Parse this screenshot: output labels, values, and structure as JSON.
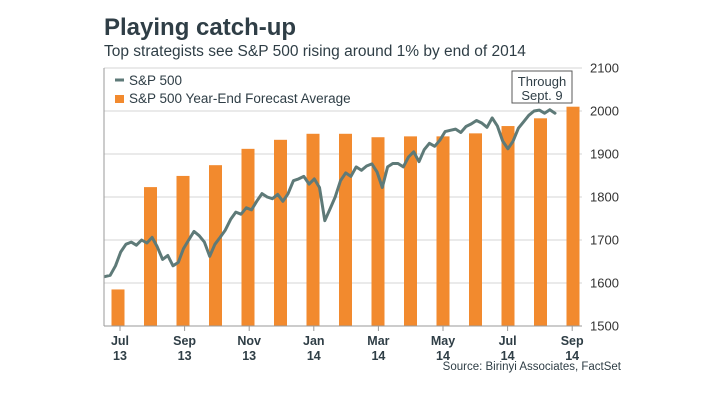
{
  "header": {
    "title": "Playing catch-up",
    "subtitle": "Top strategists see S&P 500 rising around 1% by end of 2014"
  },
  "source": "Source: Birinyi Associates, FactSet",
  "callout": {
    "line1": "Through",
    "line2": "Sept. 9"
  },
  "colors": {
    "line": "#5e7a78",
    "bar": "#f28a2e",
    "grid": "#d6d6d6",
    "axis": "#9a9a9a"
  },
  "chart_data": {
    "type": "bar+line",
    "ylim": [
      1500,
      2100
    ],
    "yticks": [
      1500,
      1600,
      1700,
      1800,
      1900,
      2000,
      2100
    ],
    "y_axis_side": "right",
    "grid": true,
    "legend_placement": "top-left",
    "xticks": [
      {
        "line1": "Jul",
        "line2": "13"
      },
      {
        "line1": "Sep",
        "line2": "13"
      },
      {
        "line1": "Nov",
        "line2": "13"
      },
      {
        "line1": "Jan",
        "line2": "14"
      },
      {
        "line1": "Mar",
        "line2": "14"
      },
      {
        "line1": "May",
        "line2": "14"
      },
      {
        "line1": "Jul",
        "line2": "14"
      },
      {
        "line1": "Sep",
        "line2": "14"
      }
    ],
    "series": [
      {
        "name": "S&P 500 Year-End Forecast Average",
        "kind": "bar",
        "values": [
          1585,
          1823,
          1849,
          1874,
          1912,
          1933,
          1947,
          1947,
          1939,
          1941,
          1941,
          1948,
          1965,
          1983,
          2010
        ]
      },
      {
        "name": "S&P 500",
        "kind": "line",
        "values": [
          1615,
          1618,
          1640,
          1672,
          1690,
          1695,
          1688,
          1700,
          1693,
          1706,
          1684,
          1655,
          1664,
          1640,
          1648,
          1680,
          1700,
          1720,
          1710,
          1695,
          1662,
          1690,
          1706,
          1723,
          1748,
          1765,
          1760,
          1775,
          1770,
          1790,
          1808,
          1800,
          1796,
          1806,
          1790,
          1808,
          1838,
          1842,
          1848,
          1830,
          1842,
          1822,
          1745,
          1772,
          1800,
          1838,
          1856,
          1848,
          1870,
          1862,
          1872,
          1877,
          1858,
          1822,
          1870,
          1878,
          1878,
          1870,
          1893,
          1905,
          1882,
          1910,
          1925,
          1918,
          1932,
          1952,
          1955,
          1958,
          1950,
          1964,
          1970,
          1978,
          1972,
          1962,
          1984,
          1965,
          1930,
          1912,
          1930,
          1960,
          1975,
          1990,
          2000,
          2002,
          1995,
          2003,
          1995
        ]
      }
    ]
  }
}
